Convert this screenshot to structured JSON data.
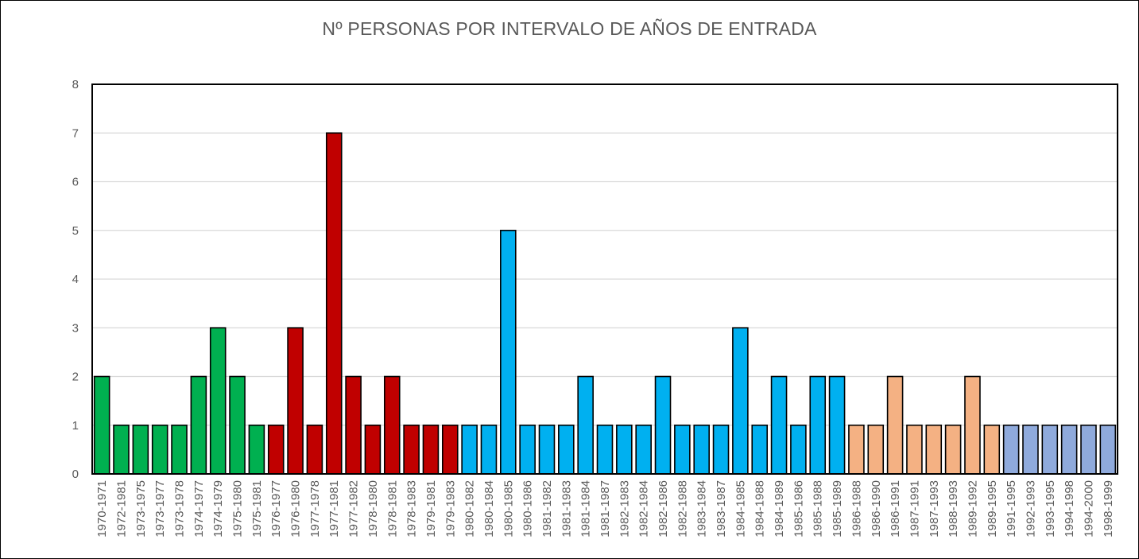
{
  "chart_data": {
    "type": "bar",
    "title": "Nº PERSONAS POR INTERVALO DE AÑOS DE ENTRADA",
    "xlabel": "",
    "ylabel": "",
    "ylim": [
      0,
      8
    ],
    "yticks": [
      "0",
      "1",
      "2",
      "3",
      "4",
      "5",
      "6",
      "7",
      "8"
    ],
    "grid": true,
    "legend": "none",
    "categories": [
      "1970-1971",
      "1972-1981",
      "1973-1975",
      "1973-1977",
      "1973-1978",
      "1974-1977",
      "1974-1979",
      "1975-1980",
      "1975-1981",
      "1976-1977",
      "1976-1980",
      "1977-1978",
      "1977-1981",
      "1977-1982",
      "1978-1980",
      "1978-1981",
      "1978-1983",
      "1979-1981",
      "1979-1983",
      "1980-1982",
      "1980-1984",
      "1980-1985",
      "1980-1986",
      "1981-1982",
      "1981-1983",
      "1981-1984",
      "1981-1987",
      "1982-1983",
      "1982-1984",
      "1982-1986",
      "1982-1988",
      "1983-1984",
      "1983-1987",
      "1984-1985",
      "1984-1988",
      "1984-1989",
      "1985-1986",
      "1985-1988",
      "1985-1989",
      "1986-1988",
      "1986-1990",
      "1986-1991",
      "1987-1991",
      "1987-1993",
      "1988-1993",
      "1989-1992",
      "1989-1995",
      "1991-1995",
      "1992-1993",
      "1993-1995",
      "1994-1998",
      "1994-2000",
      "1998-1999"
    ],
    "values": [
      2,
      1,
      1,
      1,
      1,
      2,
      3,
      2,
      1,
      1,
      3,
      1,
      7,
      2,
      1,
      2,
      1,
      1,
      1,
      1,
      1,
      5,
      1,
      1,
      1,
      2,
      1,
      1,
      1,
      2,
      1,
      1,
      1,
      3,
      1,
      2,
      1,
      2,
      2,
      1,
      1,
      2,
      1,
      1,
      1,
      2,
      1,
      1,
      1,
      1,
      1,
      1,
      1
    ],
    "bar_colors": [
      "#00b050",
      "#00b050",
      "#00b050",
      "#00b050",
      "#00b050",
      "#00b050",
      "#00b050",
      "#00b050",
      "#00b050",
      "#c00000",
      "#c00000",
      "#c00000",
      "#c00000",
      "#c00000",
      "#c00000",
      "#c00000",
      "#c00000",
      "#c00000",
      "#c00000",
      "#00b0f0",
      "#00b0f0",
      "#00b0f0",
      "#00b0f0",
      "#00b0f0",
      "#00b0f0",
      "#00b0f0",
      "#00b0f0",
      "#00b0f0",
      "#00b0f0",
      "#00b0f0",
      "#00b0f0",
      "#00b0f0",
      "#00b0f0",
      "#00b0f0",
      "#00b0f0",
      "#00b0f0",
      "#00b0f0",
      "#00b0f0",
      "#00b0f0",
      "#f4b183",
      "#f4b183",
      "#f4b183",
      "#f4b183",
      "#f4b183",
      "#f4b183",
      "#f4b183",
      "#f4b183",
      "#8faadc",
      "#8faadc",
      "#8faadc",
      "#8faadc",
      "#8faadc",
      "#8faadc"
    ],
    "colors": {
      "bar_outline": "#000000",
      "gridline": "#d9d9d9",
      "axis_text": "#595959",
      "plot_border": "#000000"
    }
  }
}
